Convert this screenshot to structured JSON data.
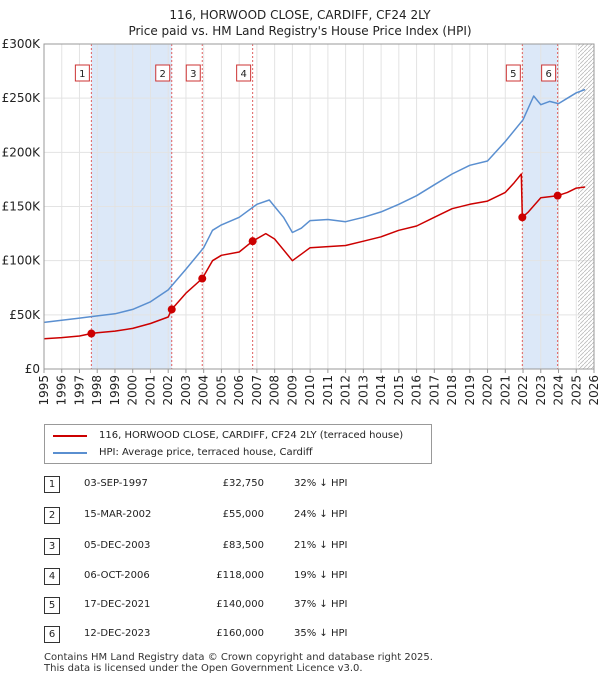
{
  "title_line1": "116, HORWOOD CLOSE, CARDIFF, CF24 2LY",
  "title_line2": "Price paid vs. HM Land Registry's House Price Index (HPI)",
  "legend": {
    "property": "116, HORWOOD CLOSE, CARDIFF, CF24 2LY (terraced house)",
    "hpi": "HPI: Average price, terraced house, Cardiff"
  },
  "colors": {
    "property": "#cc0000",
    "hpi": "#5a8fd0",
    "band": "#dce8f8",
    "grid": "#e3e3e3",
    "marker_line": "#e06060"
  },
  "footer": {
    "line1": "Contains HM Land Registry data © Crown copyright and database right 2025.",
    "line2": "This data is licensed under the Open Government Licence v3.0."
  },
  "sales": [
    {
      "num": "1",
      "date": "03-SEP-1997",
      "price": "£32,750",
      "hpi": "32% ↓ HPI"
    },
    {
      "num": "2",
      "date": "15-MAR-2002",
      "price": "£55,000",
      "hpi": "24% ↓ HPI"
    },
    {
      "num": "3",
      "date": "05-DEC-2003",
      "price": "£83,500",
      "hpi": "21% ↓ HPI"
    },
    {
      "num": "4",
      "date": "06-OCT-2006",
      "price": "£118,000",
      "hpi": "19% ↓ HPI"
    },
    {
      "num": "5",
      "date": "17-DEC-2021",
      "price": "£140,000",
      "hpi": "37% ↓ HPI"
    },
    {
      "num": "6",
      "date": "12-DEC-2023",
      "price": "£160,000",
      "hpi": "35% ↓ HPI"
    }
  ],
  "chart_data": {
    "type": "line",
    "title": "116, HORWOOD CLOSE, CARDIFF, CF24 2LY — Price paid vs. HM Land Registry's House Price Index (HPI)",
    "xlim": [
      1995,
      2026
    ],
    "ylim": [
      0,
      300000
    ],
    "x_ticks": [
      "1995",
      "1996",
      "1997",
      "1998",
      "1999",
      "2000",
      "2001",
      "2002",
      "2003",
      "2004",
      "2005",
      "2006",
      "2007",
      "2008",
      "2009",
      "2010",
      "2011",
      "2012",
      "2013",
      "2014",
      "2015",
      "2016",
      "2017",
      "2018",
      "2019",
      "2020",
      "2021",
      "2022",
      "2023",
      "2024",
      "2025",
      "2026"
    ],
    "y_ticks": [
      {
        "value": 0,
        "label": "£0"
      },
      {
        "value": 50000,
        "label": "£50K"
      },
      {
        "value": 100000,
        "label": "£100K"
      },
      {
        "value": 150000,
        "label": "£150K"
      },
      {
        "value": 200000,
        "label": "£200K"
      },
      {
        "value": 250000,
        "label": "£250K"
      },
      {
        "value": 300000,
        "label": "£300K"
      }
    ],
    "shaded_bands": [
      [
        1997.67,
        2002.2
      ],
      [
        2021.96,
        2023.95
      ]
    ],
    "future_hatch_from": 2025.1,
    "series": [
      {
        "name": "116, HORWOOD CLOSE, CARDIFF, CF24 2LY (terraced house)",
        "x": [
          1995,
          1996,
          1997,
          1997.67,
          1998,
          1999,
          2000,
          2001,
          2002,
          2002.2,
          2003,
          2003.92,
          2004.5,
          2005,
          2006,
          2006.76,
          2007.5,
          2008,
          2008.5,
          2009,
          2009.5,
          2010,
          2011,
          2012,
          2013,
          2014,
          2015,
          2016,
          2017,
          2018,
          2019,
          2020,
          2021,
          2021.5,
          2021.9,
          2021.96,
          2022.3,
          2023,
          2023.95,
          2024.5,
          2025,
          2025.5
        ],
        "y": [
          28000,
          29000,
          30500,
          32750,
          33500,
          35000,
          37500,
          42000,
          48000,
          55000,
          70000,
          83500,
          100000,
          105000,
          108000,
          118000,
          125000,
          120000,
          110000,
          100000,
          106000,
          112000,
          113000,
          114000,
          118000,
          122000,
          128000,
          132000,
          140000,
          148000,
          152000,
          155000,
          163000,
          172000,
          180000,
          140000,
          145000,
          158000,
          160000,
          163000,
          167000,
          168000
        ]
      },
      {
        "name": "HPI: Average price, terraced house, Cardiff",
        "x": [
          1995,
          1996,
          1997,
          1998,
          1999,
          2000,
          2001,
          2002,
          2003,
          2004,
          2004.5,
          2005,
          2006,
          2007,
          2007.7,
          2008,
          2008.5,
          2009,
          2009.5,
          2010,
          2011,
          2012,
          2013,
          2014,
          2015,
          2016,
          2017,
          2018,
          2019,
          2020,
          2021,
          2022,
          2022.6,
          2023,
          2023.5,
          2024,
          2024.5,
          2025,
          2025.5
        ],
        "y": [
          43000,
          45000,
          47000,
          49000,
          51000,
          55000,
          62000,
          73000,
          92000,
          112000,
          128000,
          133000,
          140000,
          152000,
          156000,
          150000,
          140000,
          126000,
          130000,
          137000,
          138000,
          136000,
          140000,
          145000,
          152000,
          160000,
          170000,
          180000,
          188000,
          192000,
          210000,
          230000,
          252000,
          244000,
          247000,
          245000,
          250000,
          255000,
          258000
        ]
      }
    ],
    "sale_markers": [
      {
        "label": "1",
        "x": 1997.67,
        "y": 32750
      },
      {
        "label": "2",
        "x": 2002.2,
        "y": 55000
      },
      {
        "label": "3",
        "x": 2003.92,
        "y": 83500
      },
      {
        "label": "4",
        "x": 2006.76,
        "y": 118000
      },
      {
        "label": "5",
        "x": 2021.96,
        "y": 140000
      },
      {
        "label": "6",
        "x": 2023.95,
        "y": 160000
      }
    ]
  }
}
